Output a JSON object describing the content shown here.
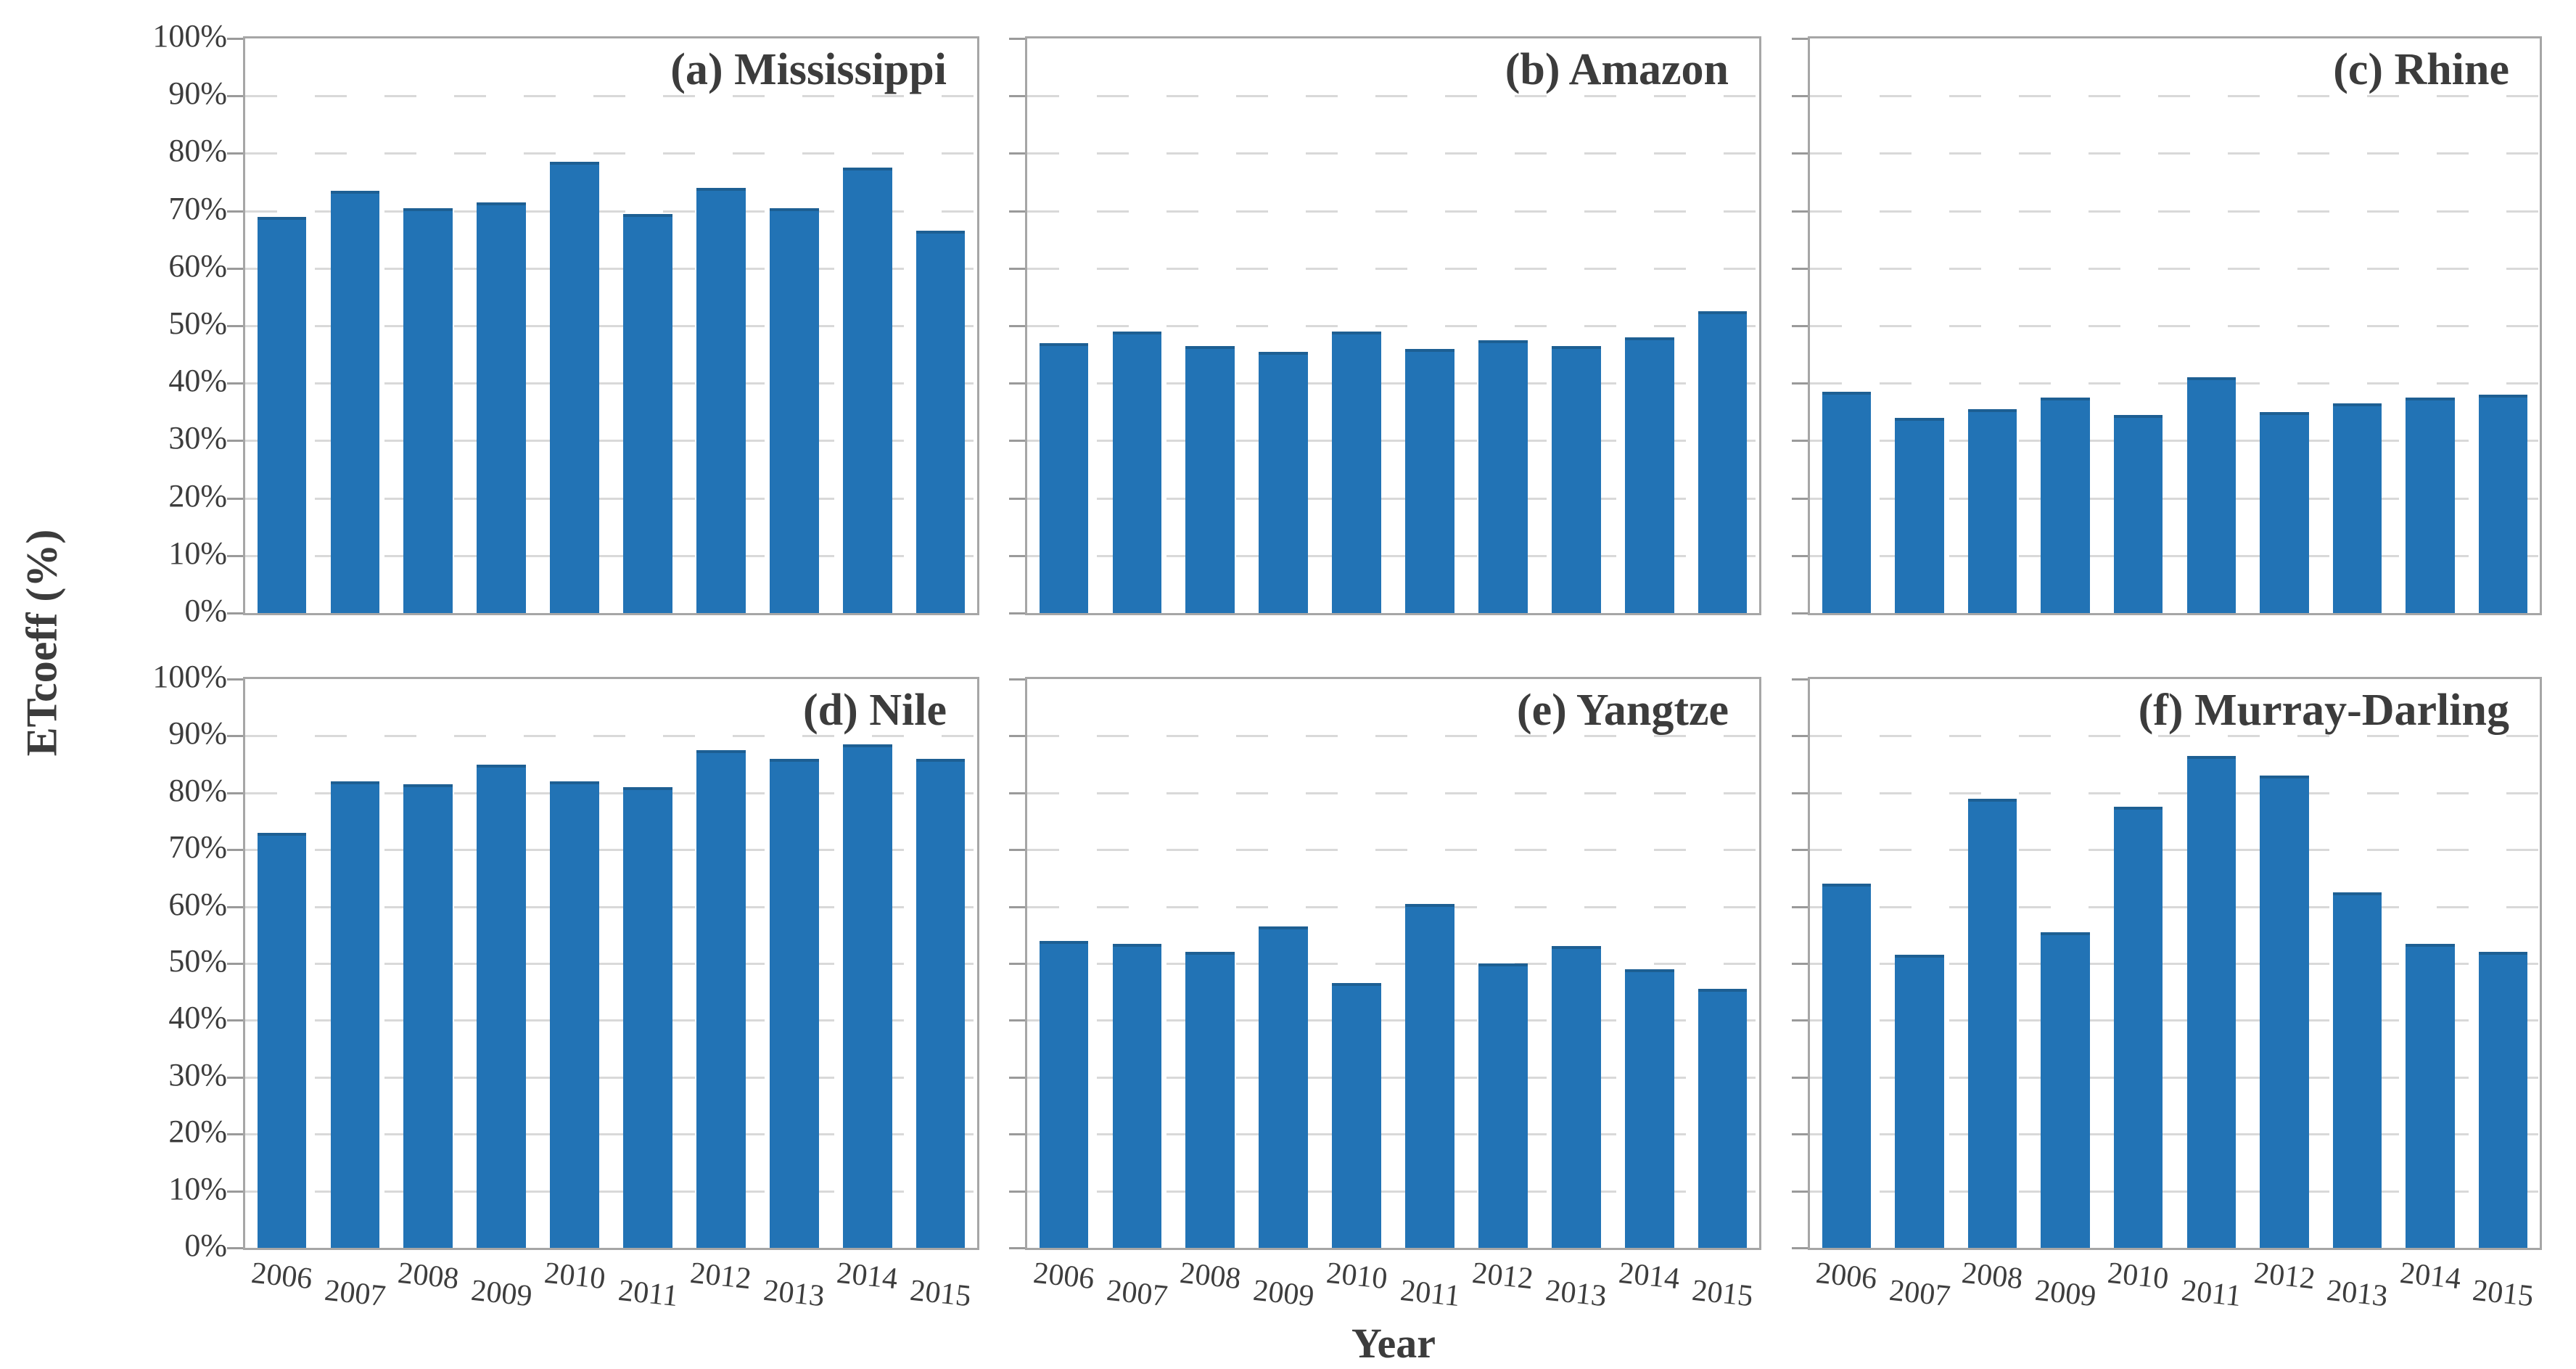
{
  "figure": {
    "y_axis_title": "ETcoeff (%)",
    "x_axis_title": "Year",
    "y_tick_labels": [
      "100%",
      "90%",
      "80%",
      "70%",
      "60%",
      "50%",
      "40%",
      "30%",
      "20%",
      "10%",
      "0%"
    ],
    "bar_color": "#2273B5",
    "bar_edge_color": "#1D5F93",
    "border_color": "#A6A6A6",
    "gridline_color": "#D9D9D9",
    "text_color": "#3D3D3D"
  },
  "chart_data": [
    {
      "type": "bar",
      "title": "(a) Mississippi",
      "categories": [
        "2006",
        "2007",
        "2008",
        "2009",
        "2010",
        "2011",
        "2012",
        "2013",
        "2014",
        "2015"
      ],
      "values": [
        69,
        73.5,
        70.5,
        71.5,
        78.5,
        69.5,
        74,
        70.5,
        77.5,
        66.5
      ],
      "xlabel": "Year",
      "ylabel": "ETcoeff (%)",
      "ylim": [
        0,
        100
      ],
      "grid": "dashed horizontal every 10%",
      "legend": "none"
    },
    {
      "type": "bar",
      "title": "(b) Amazon",
      "categories": [
        "2006",
        "2007",
        "2008",
        "2009",
        "2010",
        "2011",
        "2012",
        "2013",
        "2014",
        "2015"
      ],
      "values": [
        47,
        49,
        46.5,
        45.5,
        49,
        46,
        47.5,
        46.5,
        48,
        52.5
      ],
      "xlabel": "Year",
      "ylabel": "ETcoeff (%)",
      "ylim": [
        0,
        100
      ],
      "grid": "dashed horizontal every 10%",
      "legend": "none"
    },
    {
      "type": "bar",
      "title": "(c) Rhine",
      "categories": [
        "2006",
        "2007",
        "2008",
        "2009",
        "2010",
        "2011",
        "2012",
        "2013",
        "2014",
        "2015"
      ],
      "values": [
        38.5,
        34,
        35.5,
        37.5,
        34.5,
        41,
        35,
        36.5,
        37.5,
        38
      ],
      "xlabel": "Year",
      "ylabel": "ETcoeff (%)",
      "ylim": [
        0,
        100
      ],
      "grid": "dashed horizontal every 10%",
      "legend": "none"
    },
    {
      "type": "bar",
      "title": "(d) Nile",
      "categories": [
        "2006",
        "2007",
        "2008",
        "2009",
        "2010",
        "2011",
        "2012",
        "2013",
        "2014",
        "2015"
      ],
      "values": [
        73,
        82,
        81.5,
        85,
        82,
        81,
        87.5,
        86,
        88.5,
        86
      ],
      "xlabel": "Year",
      "ylabel": "ETcoeff (%)",
      "ylim": [
        0,
        100
      ],
      "grid": "dashed horizontal every 10%",
      "legend": "none"
    },
    {
      "type": "bar",
      "title": "(e) Yangtze",
      "categories": [
        "2006",
        "2007",
        "2008",
        "2009",
        "2010",
        "2011",
        "2012",
        "2013",
        "2014",
        "2015"
      ],
      "values": [
        54,
        53.5,
        52,
        56.5,
        46.5,
        60.5,
        50,
        53,
        49,
        45.5
      ],
      "xlabel": "Year",
      "ylabel": "ETcoeff (%)",
      "ylim": [
        0,
        100
      ],
      "grid": "dashed horizontal every 10%",
      "legend": "none"
    },
    {
      "type": "bar",
      "title": "(f) Murray-Darling",
      "categories": [
        "2006",
        "2007",
        "2008",
        "2009",
        "2010",
        "2011",
        "2012",
        "2013",
        "2014",
        "2015"
      ],
      "values": [
        64,
        51.5,
        79,
        55.5,
        77.5,
        86.5,
        83,
        62.5,
        53.5,
        52
      ],
      "xlabel": "Year",
      "ylabel": "ETcoeff (%)",
      "ylim": [
        0,
        100
      ],
      "grid": "dashed horizontal every 10%",
      "legend": "none"
    }
  ]
}
